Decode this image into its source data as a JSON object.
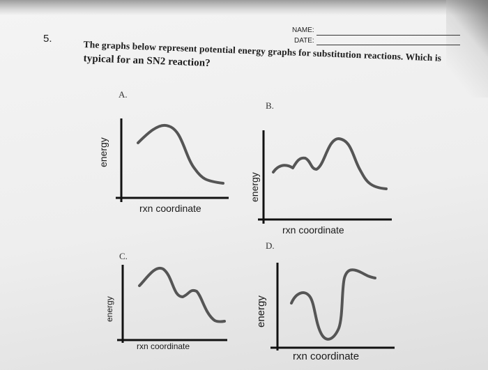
{
  "header": {
    "name_label": "NAME:",
    "date_label": "DATE:"
  },
  "question": {
    "number": "5.",
    "line1": "The graphs below represent potential energy graphs for substitution reactions. Which is",
    "line2": "typical for an SN2 reaction?"
  },
  "graphs": [
    {
      "letter": "A.",
      "y_label": "energy",
      "x_label": "rxn coordinate"
    },
    {
      "letter": "B.",
      "y_label": "energy",
      "x_label": "rxn coordinate"
    },
    {
      "letter": "C.",
      "y_label": "energy",
      "x_label": "rxn coordinate"
    },
    {
      "letter": "D.",
      "y_label": "energy",
      "x_label": "rxn coordinate"
    }
  ]
}
